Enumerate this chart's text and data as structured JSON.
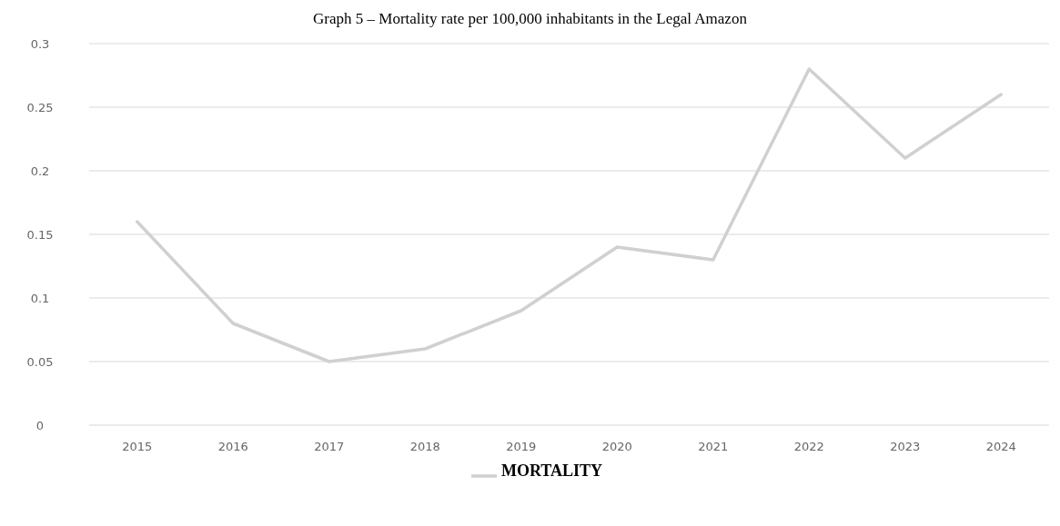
{
  "chart_data": {
    "type": "line",
    "title": "Graph 5 – Mortality rate per 100,000 inhabitants in the Legal Amazon",
    "categories": [
      "2015",
      "2016",
      "2017",
      "2018",
      "2019",
      "2020",
      "2021",
      "2022",
      "2023",
      "2024"
    ],
    "series": [
      {
        "name": "MORTALITY",
        "color": "#d0d0d0",
        "values": [
          0.16,
          0.08,
          0.05,
          0.06,
          0.09,
          0.14,
          0.13,
          0.28,
          0.21,
          0.26
        ]
      }
    ],
    "ylim": [
      0,
      0.3
    ],
    "yticks": [
      0,
      0.05,
      0.1,
      0.15,
      0.2,
      0.25,
      0.3
    ],
    "grid": "y",
    "legend": "bottom",
    "marker": "none",
    "line_style": "solid"
  }
}
